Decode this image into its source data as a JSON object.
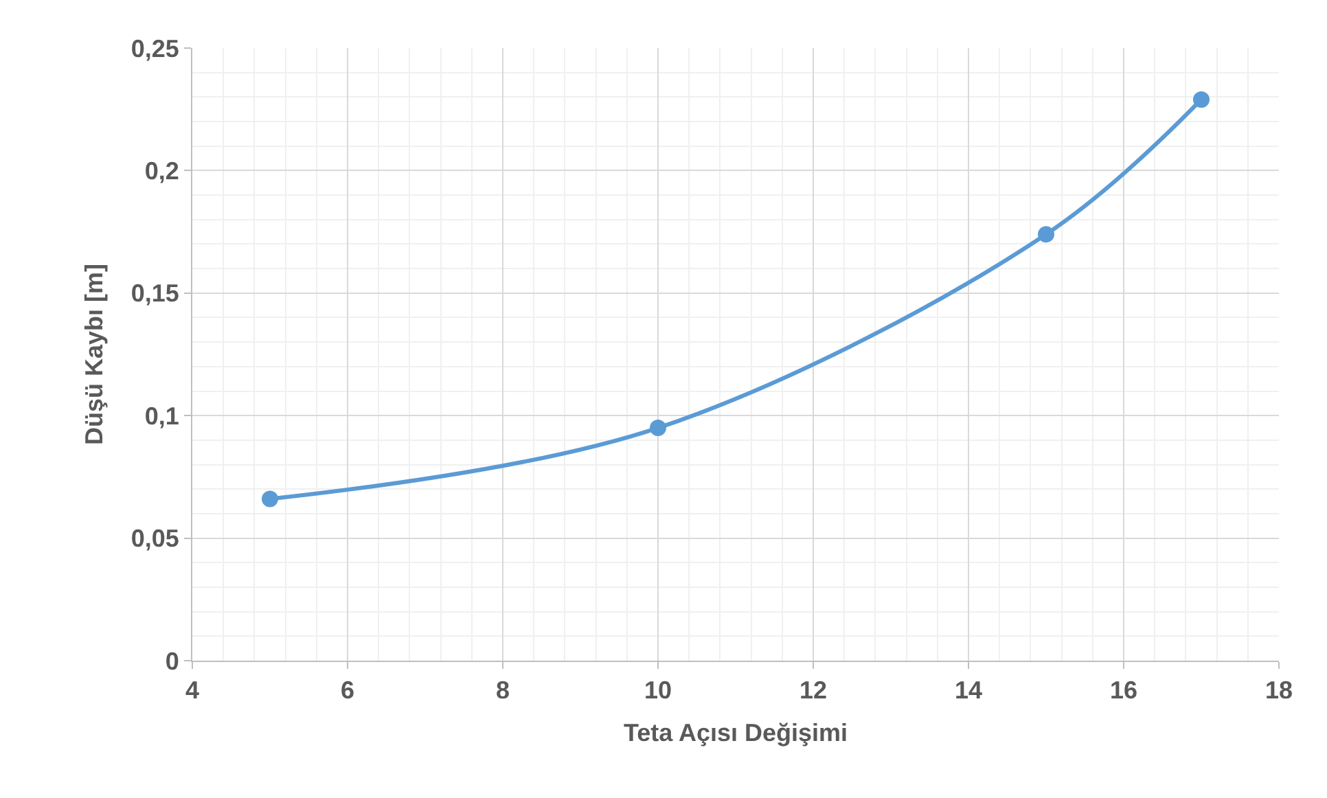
{
  "chart_data": {
    "type": "line",
    "xlabel": "Teta Açısı Değişimi",
    "ylabel": "Düşü Kaybı [m]",
    "x": [
      5,
      10,
      15,
      17
    ],
    "series": [
      {
        "color": "#5b9bd5",
        "values": [
          0.066,
          0.095,
          0.174,
          0.229
        ]
      }
    ],
    "xlim": [
      4,
      18
    ],
    "xticks": [
      4,
      6,
      8,
      10,
      12,
      14,
      16,
      18
    ],
    "ylim": [
      0,
      0.25
    ],
    "yticks": [
      0,
      {
        "value": 0.05,
        "label": "0,05"
      },
      {
        "value": 0.1,
        "label": "0,1"
      },
      {
        "value": 0.15,
        "label": "0,15"
      },
      {
        "value": 0.2,
        "label": "0,2"
      },
      {
        "value": 0.25,
        "label": "0,25"
      }
    ],
    "grid": true,
    "marker": "circle",
    "line_style": "solid"
  }
}
